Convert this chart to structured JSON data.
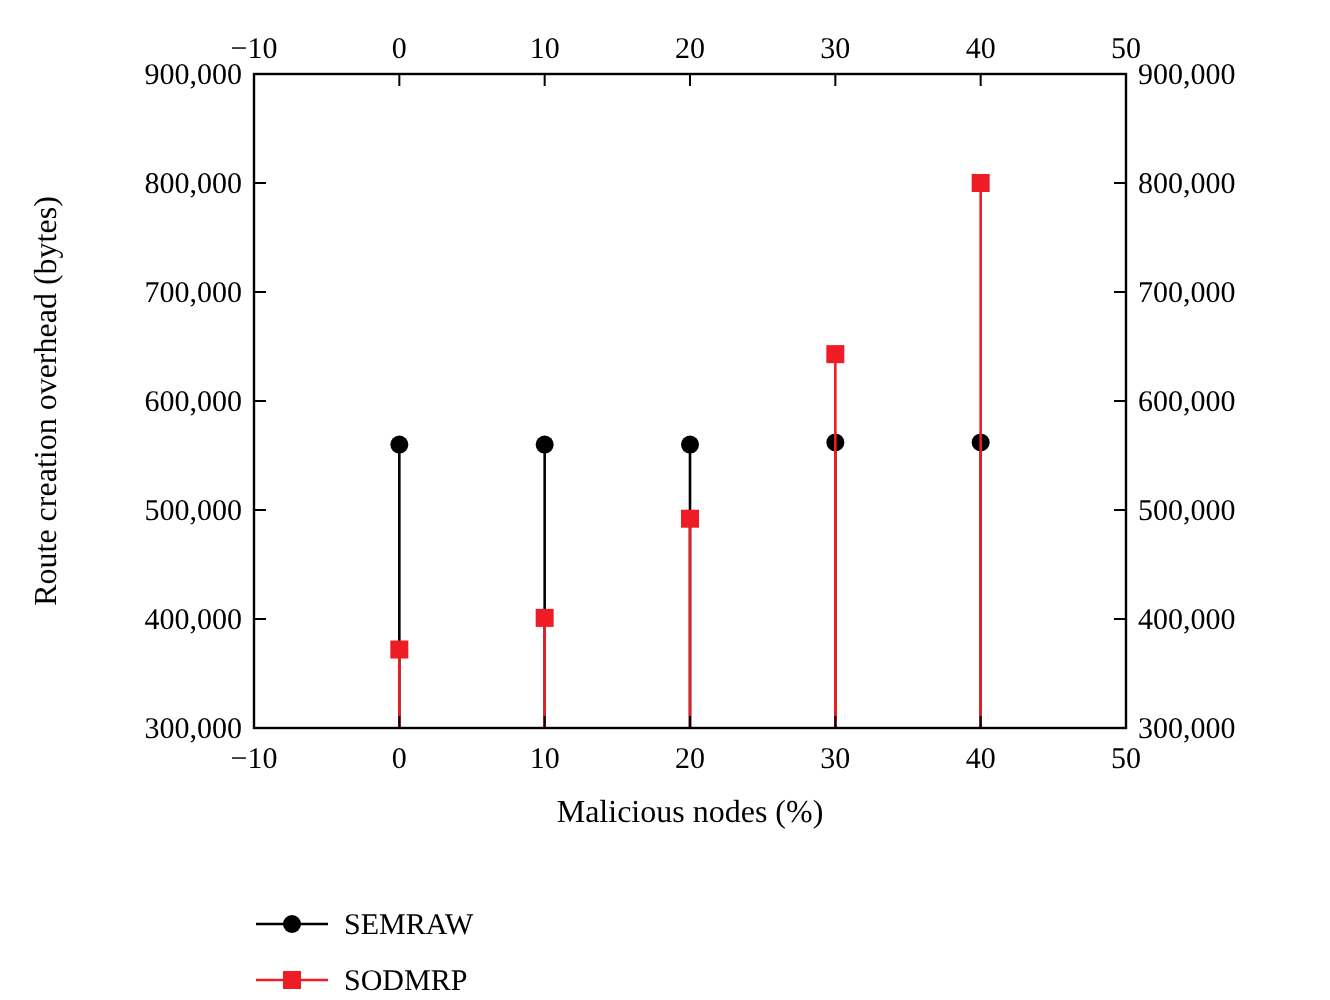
{
  "chart_data": {
    "type": "lollipop",
    "xlabel": "Malicious nodes (%)",
    "ylabel": "Route creation overhead (bytes)",
    "x": [
      0,
      10,
      20,
      30,
      40
    ],
    "series": [
      {
        "name": "SEMRAW",
        "color": "#000000",
        "marker": "circle",
        "values": [
          560000,
          560000,
          560000,
          562000,
          562000
        ]
      },
      {
        "name": "SODMRP",
        "color": "#ee1c25",
        "marker": "square",
        "values": [
          372000,
          401000,
          492000,
          643000,
          800000
        ]
      }
    ],
    "xlim": [
      -10,
      50
    ],
    "xticks": [
      {
        "value": -10,
        "label": "−10"
      },
      0,
      10,
      20,
      30,
      40,
      50
    ],
    "x2lim": [
      -10,
      50
    ],
    "x2ticks": [
      {
        "value": -10,
        "label": "−10"
      },
      0,
      10,
      20,
      30,
      40,
      50
    ],
    "ylim": [
      300000,
      900000
    ],
    "yticks": [
      {
        "value": 300000,
        "label": "300,000"
      },
      {
        "value": 400000,
        "label": "400,000"
      },
      {
        "value": 500000,
        "label": "500,000"
      },
      {
        "value": 600000,
        "label": "600,000"
      },
      {
        "value": 700000,
        "label": "700,000"
      },
      {
        "value": 800000,
        "label": "800,000"
      },
      {
        "value": 900000,
        "label": "900,000"
      }
    ],
    "y2lim": [
      300000,
      900000
    ],
    "y2ticks": [
      {
        "value": 300000,
        "label": "300,000"
      },
      {
        "value": 400000,
        "label": "400,000"
      },
      {
        "value": 500000,
        "label": "500,000"
      },
      {
        "value": 600000,
        "label": "600,000"
      },
      {
        "value": 700000,
        "label": "700,000"
      },
      {
        "value": 800000,
        "label": "800,000"
      },
      {
        "value": 900000,
        "label": "900,000"
      }
    ],
    "legend": "bottom",
    "grid": false
  }
}
